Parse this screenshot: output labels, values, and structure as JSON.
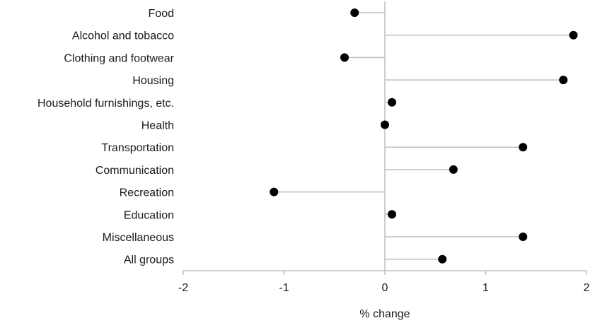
{
  "chart_data": {
    "type": "lollipop",
    "categories": [
      "Food",
      "Alcohol and tobacco",
      "Clothing and footwear",
      "Housing",
      "Household furnishings, etc.",
      "Health",
      "Transportation",
      "Communication",
      "Recreation",
      "Education",
      "Miscellaneous",
      "All groups"
    ],
    "values": [
      -0.3,
      1.87,
      -0.4,
      1.77,
      0.07,
      0.0,
      1.37,
      0.68,
      -1.1,
      0.07,
      1.37,
      0.57
    ],
    "xlabel": "% change",
    "xlim": [
      -2,
      2
    ],
    "xticks": [
      -2,
      -1,
      0,
      1,
      2
    ],
    "xtick_labels": [
      "-2",
      "-1",
      "0",
      "1",
      "2"
    ],
    "grid": false,
    "colors": {
      "marker": "#000000",
      "stem": "#bfbfbf",
      "axis": "#bfbfbf"
    }
  }
}
